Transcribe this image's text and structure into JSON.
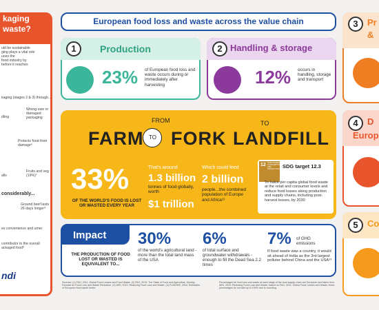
{
  "left_panel": {
    "title": [
      "kaging",
      "waste?"
    ],
    "intro": [
      "uld be sustainable",
      "ging plays a vital role",
      "uces the",
      "food industry by",
      "before it reaches"
    ],
    "subhead": "kaging (stages 2 & 3) through...",
    "items": [
      "Wrong-size or damaged packaging",
      "dling",
      "Protects food from damage⁶",
      "Fruits and veg (19%)⁷",
      "alls",
      "considerably...",
      "Ground beef lasts 26 days longer⁸",
      "es convenience and umer",
      "contributor to the overall ackaged food⁹"
    ],
    "logo": "ndi"
  },
  "header": {
    "title": "European food loss and waste across the value chain"
  },
  "stages": [
    {
      "number": "1",
      "name": "Production",
      "percent": "23%",
      "text": "of European food loss and waste occurs during or immediately after harvesting"
    },
    {
      "number": "2",
      "name": "Handling & storage",
      "percent": "12%",
      "text": "occurs in handling, storage and transport"
    }
  ],
  "farm": {
    "words": [
      "FARM",
      "FROM",
      "TO",
      "FORK",
      "TO",
      "LANDFILL"
    ],
    "big": "33%",
    "big_text": "OF THE WORLD'S FOOD IS LOST OR WASTED EVERY YEAR",
    "around": "That's around",
    "tonnes": "1.3 billion",
    "tonnes_text": "tonnes of food globally, worth",
    "worth": "$1 trillion",
    "feed": "Which could feed",
    "people": "2 billion",
    "people_text": "people...the combined population of Europe and Africa¹²",
    "sdg_icon": "12",
    "sdg_icon_text": "RESPONSIBLE CONSUMPTION AND PRODUCTION",
    "sdg_title": "SDG target 12.3",
    "sdg_text": "To halve per capita global food waste at the retail and consumer levels and reduce food losses along production and supply chains, including post-harvest losses, by 2030"
  },
  "impact": {
    "title": "Impact",
    "lead": "THE PRODUCTION OF FOOD LOST OR WASTED IS EQUIVALENT TO...",
    "stats": [
      {
        "percent": "30%",
        "text": "of the world's agricultural land - more than the total land mass of the USA"
      },
      {
        "percent": "6%",
        "text": "of total surface and groundwater withdrawals - enough to fill the Dead Sea 2.2 times"
      },
      {
        "percent": "7%",
        "text": "of GHG emissions",
        "extra": "If food waste was a country, it would sit ahead of India as the 3rd largest polluter behind China and the USA¹³"
      }
    ]
  },
  "footer": {
    "sources": "Sources: (1) FAO, 2011. Global Food Losses and Food Waste. (2) FAO, 2019. The State of Food and Agriculture. Moving Forward on Food Loss and Waste Reduction. (3) WRI, 2019. Reducing Food Loss and Waste. (4) FUSIONS, 2016. Estimates of European food waste levels.",
    "note": "Percentages for food loss and waste at each stage of the food supply chain are European and taken from WRI, 2013, Reducing Food Loss and Waste, based on FAO, 2011, Global Food Losses and Waste; these percentages do not add up to 100% due to rounding."
  },
  "right_panel": [
    {
      "number": "3",
      "name": [
        "Pr",
        "&"
      ]
    },
    {
      "number": "4",
      "name": [
        "D",
        "Europ"
      ]
    },
    {
      "number": "5",
      "name": [
        "Co"
      ]
    }
  ]
}
